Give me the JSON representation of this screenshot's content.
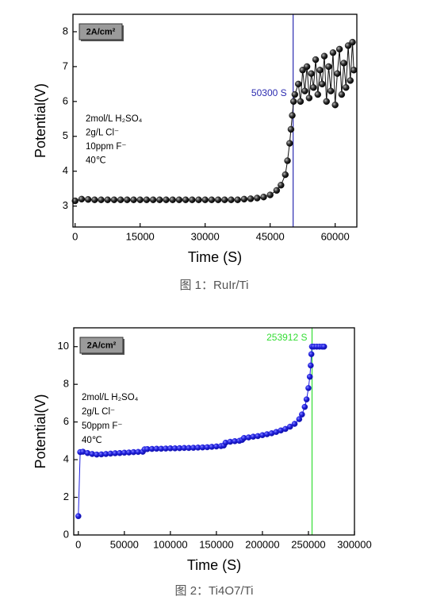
{
  "chart_data": [
    {
      "type": "line",
      "caption": "图 1：RuIr/Ti",
      "xlabel": "Time (S)",
      "ylabel": "Potential(V)",
      "xlim": [
        -500,
        65000
      ],
      "ylim": [
        2.4,
        8.5
      ],
      "xticks": [
        0,
        15000,
        30000,
        45000,
        60000
      ],
      "yticks": [
        3,
        4,
        5,
        6,
        7,
        8
      ],
      "box_label": "2A/cm²",
      "notes": [
        "2mol/L H₂SO₄",
        "2g/L Cl⁻",
        "10ppm F⁻",
        "40℃"
      ],
      "vline": {
        "x": 50300,
        "label": "50300 S",
        "color": "#2b2bb0"
      },
      "series": [
        {
          "color": "#111111",
          "x": [
            0,
            1500,
            3000,
            4500,
            6000,
            7500,
            9000,
            10500,
            12000,
            13500,
            15000,
            16500,
            18000,
            19500,
            21000,
            22500,
            24000,
            25500,
            27000,
            28500,
            30000,
            31500,
            33000,
            34500,
            36000,
            37500,
            39000,
            40500,
            42000,
            43500,
            45000,
            46500,
            47500,
            48500,
            49000,
            49500,
            49800,
            50100,
            50400,
            50700,
            51500,
            52000,
            52500,
            53000,
            53500,
            54000,
            54500,
            55000,
            55500,
            56000,
            56500,
            57000,
            57500,
            58000,
            58500,
            59000,
            59500,
            60000,
            60500,
            61000,
            61500,
            62000,
            62500,
            63000,
            63500,
            64000,
            64300
          ],
          "values": [
            3.15,
            3.2,
            3.19,
            3.18,
            3.18,
            3.18,
            3.18,
            3.18,
            3.18,
            3.18,
            3.18,
            3.18,
            3.18,
            3.18,
            3.18,
            3.18,
            3.18,
            3.18,
            3.18,
            3.18,
            3.18,
            3.18,
            3.18,
            3.18,
            3.18,
            3.18,
            3.2,
            3.21,
            3.23,
            3.26,
            3.32,
            3.45,
            3.6,
            3.9,
            4.3,
            4.8,
            5.2,
            5.6,
            6.0,
            6.2,
            6.5,
            6.0,
            6.9,
            6.3,
            7.0,
            6.1,
            6.8,
            6.4,
            7.2,
            6.2,
            6.9,
            6.5,
            7.3,
            6.0,
            7.0,
            6.3,
            7.4,
            5.9,
            6.8,
            7.5,
            6.2,
            7.1,
            6.4,
            7.6,
            6.6,
            7.7,
            6.9
          ]
        }
      ]
    },
    {
      "type": "line",
      "caption": "图 2：Ti4O7/Ti",
      "xlabel": "Time (S)",
      "ylabel": "Potential(V)",
      "xlim": [
        -5000,
        300000
      ],
      "ylim": [
        0,
        11
      ],
      "xticks": [
        0,
        50000,
        100000,
        150000,
        200000,
        250000,
        300000
      ],
      "yticks": [
        0,
        2,
        4,
        6,
        8,
        10
      ],
      "box_label": "2A/cm²",
      "notes": [
        "2mol/L H₂SO₄",
        "2g/L Cl⁻",
        "50ppm F⁻",
        "40℃"
      ],
      "vline": {
        "x": 253912,
        "label": "253912 S",
        "color": "#33dd33"
      },
      "series": [
        {
          "color": "#1f1fe0",
          "x": [
            0,
            2000,
            5000,
            10000,
            15000,
            20000,
            25000,
            30000,
            35000,
            40000,
            45000,
            50000,
            55000,
            60000,
            65000,
            70000,
            72000,
            75000,
            80000,
            85000,
            90000,
            95000,
            100000,
            105000,
            110000,
            115000,
            120000,
            125000,
            130000,
            135000,
            140000,
            145000,
            150000,
            155000,
            158000,
            160000,
            165000,
            170000,
            175000,
            178000,
            180000,
            185000,
            190000,
            195000,
            200000,
            205000,
            210000,
            215000,
            220000,
            225000,
            230000,
            235000,
            240000,
            243000,
            246000,
            248000,
            250000,
            251500,
            252500,
            253200,
            253900,
            256000,
            259000,
            262000,
            265000,
            267000
          ],
          "values": [
            1,
            4.4,
            4.42,
            4.35,
            4.3,
            4.27,
            4.28,
            4.3,
            4.32,
            4.34,
            4.35,
            4.37,
            4.38,
            4.4,
            4.41,
            4.42,
            4.55,
            4.56,
            4.57,
            4.58,
            4.58,
            4.59,
            4.6,
            4.6,
            4.61,
            4.62,
            4.62,
            4.63,
            4.64,
            4.65,
            4.66,
            4.68,
            4.7,
            4.72,
            4.75,
            4.9,
            4.95,
            4.98,
            5.0,
            5.05,
            5.15,
            5.18,
            5.22,
            5.25,
            5.3,
            5.35,
            5.4,
            5.47,
            5.55,
            5.63,
            5.75,
            5.9,
            6.15,
            6.4,
            6.8,
            7.2,
            7.8,
            8.4,
            9.0,
            9.6,
            10,
            10,
            10,
            10,
            10,
            10
          ]
        }
      ]
    }
  ]
}
